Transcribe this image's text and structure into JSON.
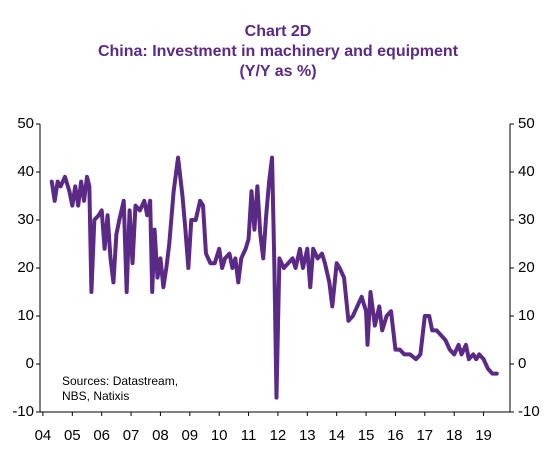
{
  "chart_data": {
    "type": "line",
    "title": "Chart 2D",
    "subtitle": "China: Investment in machinery and equipment",
    "unit_label": "(Y/Y as %)",
    "annotation": [
      "Sources: Datastream,",
      "NBS, Natixis"
    ],
    "color": "#5b2a86",
    "xlim": [
      2003.9,
      2019.9
    ],
    "xticks": [
      {
        "value": 2004,
        "label": "04"
      },
      {
        "value": 2005,
        "label": "05"
      },
      {
        "value": 2006,
        "label": "06"
      },
      {
        "value": 2007,
        "label": "07"
      },
      {
        "value": 2008,
        "label": "08"
      },
      {
        "value": 2009,
        "label": "09"
      },
      {
        "value": 2010,
        "label": "10"
      },
      {
        "value": 2011,
        "label": "11"
      },
      {
        "value": 2012,
        "label": "12"
      },
      {
        "value": 2013,
        "label": "13"
      },
      {
        "value": 2014,
        "label": "14"
      },
      {
        "value": 2015,
        "label": "15"
      },
      {
        "value": 2016,
        "label": "16"
      },
      {
        "value": 2017,
        "label": "17"
      },
      {
        "value": 2018,
        "label": "18"
      },
      {
        "value": 2019,
        "label": "19"
      }
    ],
    "ylim": [
      -10,
      50
    ],
    "yticks": [
      -10,
      0,
      10,
      20,
      30,
      40,
      50
    ],
    "y2lim": [
      -10,
      50
    ],
    "y2ticks": [
      -10,
      0,
      10,
      20,
      30,
      40,
      50
    ],
    "x": [
      2004.3,
      2004.4,
      2004.5,
      2004.6,
      2004.75,
      2004.9,
      2005.0,
      2005.1,
      2005.2,
      2005.3,
      2005.4,
      2005.5,
      2005.58,
      2005.65,
      2005.75,
      2005.9,
      2006.0,
      2006.1,
      2006.2,
      2006.3,
      2006.4,
      2006.5,
      2006.6,
      2006.75,
      2006.85,
      2006.95,
      2007.05,
      2007.15,
      2007.3,
      2007.45,
      2007.55,
      2007.65,
      2007.72,
      2007.8,
      2007.9,
      2008.0,
      2008.1,
      2008.2,
      2008.3,
      2008.45,
      2008.6,
      2008.75,
      2008.85,
      2008.95,
      2009.05,
      2009.2,
      2009.35,
      2009.45,
      2009.55,
      2009.7,
      2009.85,
      2010.0,
      2010.1,
      2010.2,
      2010.35,
      2010.45,
      2010.55,
      2010.65,
      2010.75,
      2010.9,
      2011.0,
      2011.1,
      2011.2,
      2011.3,
      2011.4,
      2011.5,
      2011.6,
      2011.7,
      2011.8,
      2011.88,
      2011.95,
      2012.05,
      2012.2,
      2012.35,
      2012.5,
      2012.6,
      2012.75,
      2012.85,
      2013.0,
      2013.1,
      2013.2,
      2013.35,
      2013.5,
      2013.6,
      2013.75,
      2013.85,
      2014.0,
      2014.1,
      2014.25,
      2014.4,
      2014.55,
      2014.7,
      2014.85,
      2015.0,
      2015.05,
      2015.15,
      2015.3,
      2015.45,
      2015.55,
      2015.7,
      2015.85,
      2016.0,
      2016.15,
      2016.3,
      2016.5,
      2016.7,
      2016.85,
      2017.0,
      2017.15,
      2017.25,
      2017.4,
      2017.55,
      2017.7,
      2017.85,
      2018.0,
      2018.15,
      2018.25,
      2018.4,
      2018.5,
      2018.65,
      2018.75,
      2018.85,
      2019.0,
      2019.15,
      2019.3,
      2019.45
    ],
    "values": [
      38,
      34,
      38,
      37,
      39,
      36,
      33,
      37,
      33,
      38,
      34,
      39,
      37,
      15,
      30,
      31,
      32,
      24,
      31,
      22,
      17,
      27,
      30,
      34,
      15,
      32,
      21,
      33,
      32,
      34,
      31,
      34,
      15,
      28,
      18,
      22,
      16,
      20,
      25,
      36,
      43,
      35,
      28,
      20,
      30,
      30,
      34,
      33,
      23,
      21,
      21,
      24,
      20,
      22,
      23,
      20,
      22,
      17,
      22,
      24,
      26,
      36,
      28,
      37,
      27,
      22,
      31,
      38,
      43,
      20,
      -7,
      22,
      20,
      21,
      22,
      20,
      24,
      20,
      24,
      16,
      24,
      22,
      23,
      21,
      17,
      12,
      21,
      20,
      18,
      9,
      10,
      12,
      14,
      11,
      4,
      15,
      8,
      12,
      7,
      10,
      11,
      3,
      3,
      2,
      2,
      1,
      2,
      10,
      10,
      7,
      7,
      6,
      5,
      3,
      2,
      4,
      2,
      4,
      1,
      2,
      1,
      2,
      1,
      -1,
      -2,
      -2
    ]
  }
}
